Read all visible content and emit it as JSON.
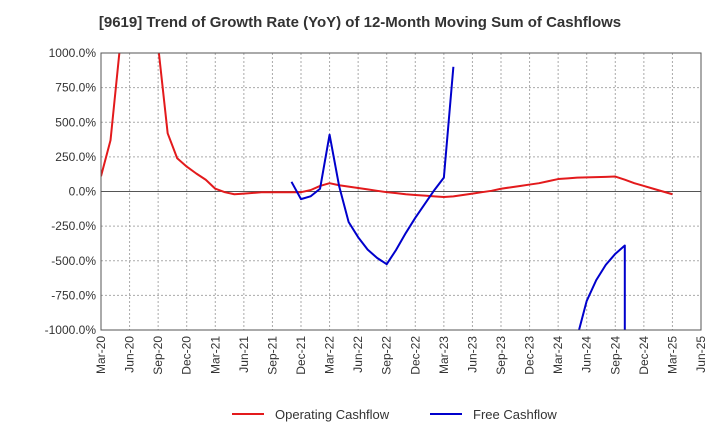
{
  "chart_data": {
    "type": "line",
    "title": "[9619]  Trend of Growth Rate (YoY) of 12-Month Moving Sum of Cashflows",
    "xlabel": "",
    "ylabel": "",
    "ylim": [
      -1000,
      1000
    ],
    "y_ticks": [
      "1000.0%",
      "750.0%",
      "500.0%",
      "250.0%",
      "0.0%",
      "-250.0%",
      "-500.0%",
      "-750.0%",
      "-1000.0%"
    ],
    "y_tick_values": [
      1000,
      750,
      500,
      250,
      0,
      -250,
      -500,
      -750,
      -1000
    ],
    "x_ticks": [
      "Mar-20",
      "Jun-20",
      "Sep-20",
      "Dec-20",
      "Mar-21",
      "Jun-21",
      "Sep-21",
      "Dec-21",
      "Mar-22",
      "Jun-22",
      "Sep-22",
      "Dec-22",
      "Mar-23",
      "Jun-23",
      "Sep-23",
      "Dec-23",
      "Mar-24",
      "Jun-24",
      "Sep-24",
      "Dec-24",
      "Mar-25",
      "Jun-25"
    ],
    "grid": true,
    "legend": "bottom",
    "series": [
      {
        "name": "Operating Cashflow",
        "color": "#e31a1c",
        "points": [
          [
            "Mar-20",
            110
          ],
          [
            "Apr-20",
            370
          ],
          [
            "May-20",
            1050
          ],
          [
            "Jul-20",
            1050
          ],
          [
            "Sep-20",
            1050
          ],
          [
            "Oct-20",
            420
          ],
          [
            "Nov-20",
            240
          ],
          [
            "Dec-20",
            180
          ],
          [
            "Jan-21",
            130
          ],
          [
            "Feb-21",
            85
          ],
          [
            "Mar-21",
            20
          ],
          [
            "Apr-21",
            -5
          ],
          [
            "May-21",
            -20
          ],
          [
            "Jun-21",
            -15
          ],
          [
            "Jul-21",
            -10
          ],
          [
            "Aug-21",
            -5
          ],
          [
            "Sep-21",
            -5
          ],
          [
            "Oct-21",
            -5
          ],
          [
            "Nov-21",
            -5
          ],
          [
            "Dec-21",
            -5
          ],
          [
            "Jan-22",
            10
          ],
          [
            "Feb-22",
            40
          ],
          [
            "Mar-22",
            60
          ],
          [
            "Apr-22",
            45
          ],
          [
            "May-22",
            35
          ],
          [
            "Jun-22",
            25
          ],
          [
            "Jul-22",
            15
          ],
          [
            "Aug-22",
            5
          ],
          [
            "Sep-22",
            -5
          ],
          [
            "Oct-22",
            -12
          ],
          [
            "Nov-22",
            -20
          ],
          [
            "Dec-22",
            -25
          ],
          [
            "Jan-23",
            -30
          ],
          [
            "Feb-23",
            -35
          ],
          [
            "Mar-23",
            -40
          ],
          [
            "Apr-23",
            -35
          ],
          [
            "May-23",
            -25
          ],
          [
            "Jun-23",
            -15
          ],
          [
            "Jul-23",
            -5
          ],
          [
            "Aug-23",
            5
          ],
          [
            "Sep-23",
            20
          ],
          [
            "Oct-23",
            30
          ],
          [
            "Nov-23",
            40
          ],
          [
            "Dec-23",
            50
          ],
          [
            "Jan-24",
            60
          ],
          [
            "Feb-24",
            75
          ],
          [
            "Mar-24",
            90
          ],
          [
            "Apr-24",
            95
          ],
          [
            "May-24",
            100
          ],
          [
            "Jun-24",
            102
          ],
          [
            "Jul-24",
            104
          ],
          [
            "Aug-24",
            106
          ],
          [
            "Sep-24",
            108
          ],
          [
            "Oct-24",
            85
          ],
          [
            "Nov-24",
            60
          ],
          [
            "Dec-24",
            40
          ],
          [
            "Jan-25",
            20
          ],
          [
            "Feb-25",
            0
          ],
          [
            "Mar-25",
            -20
          ]
        ]
      },
      {
        "name": "Free Cashflow",
        "color": "#0000cc",
        "segments": [
          [
            [
              "Nov-21",
              70
            ],
            [
              "Dec-21",
              -55
            ],
            [
              "Jan-22",
              -35
            ],
            [
              "Feb-22",
              20
            ],
            [
              "Mar-22",
              410
            ],
            [
              "Apr-22",
              40
            ],
            [
              "May-22",
              -220
            ],
            [
              "Jun-22",
              -330
            ],
            [
              "Jul-22",
              -420
            ],
            [
              "Aug-22",
              -480
            ],
            [
              "Sep-22",
              -525
            ],
            [
              "Oct-22",
              -420
            ],
            [
              "Nov-22",
              -300
            ],
            [
              "Dec-22",
              -190
            ],
            [
              "Jan-23",
              -90
            ],
            [
              "Feb-23",
              10
            ],
            [
              "Mar-23",
              100
            ],
            [
              "Apr-23",
              900
            ]
          ],
          [
            [
              "May-24",
              -1050
            ],
            [
              "Jun-24",
              -790
            ],
            [
              "Jul-24",
              -640
            ],
            [
              "Aug-24",
              -530
            ],
            [
              "Sep-24",
              -450
            ],
            [
              "Oct-24",
              -390
            ],
            [
              "Oct-24",
              -1050
            ]
          ]
        ]
      }
    ]
  }
}
